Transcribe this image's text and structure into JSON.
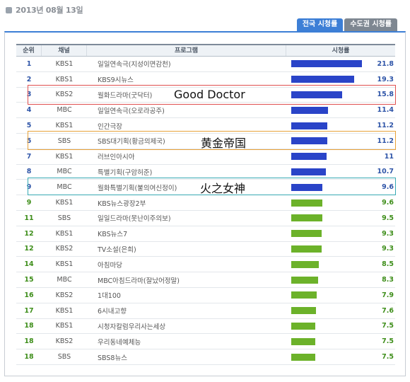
{
  "date": "2013년 08월 13일",
  "tabs": [
    {
      "label": "전국 시청률",
      "active": true
    },
    {
      "label": "수도권 시청률",
      "active": false
    }
  ],
  "table": {
    "headers": {
      "rank": "순위",
      "channel": "채널",
      "program": "프로그램",
      "rating": "시청률"
    },
    "max_rating": 21.8,
    "rows": [
      {
        "rank": "1",
        "channel": "KBS1",
        "program": "일일연속극(지성이면감천)",
        "rating": "21.8",
        "value": 21.8,
        "color": "blue"
      },
      {
        "rank": "2",
        "channel": "KBS1",
        "program": "KBS9시뉴스",
        "rating": "19.3",
        "value": 19.3,
        "color": "blue"
      },
      {
        "rank": "3",
        "channel": "KBS2",
        "program": "월화드라마(굿닥터)",
        "rating": "15.8",
        "value": 15.8,
        "color": "blue"
      },
      {
        "rank": "4",
        "channel": "MBC",
        "program": "일일연속극(오로라공주)",
        "rating": "11.4",
        "value": 11.4,
        "color": "blue"
      },
      {
        "rank": "5",
        "channel": "KBS1",
        "program": "인간극장",
        "rating": "11.2",
        "value": 11.2,
        "color": "blue"
      },
      {
        "rank": "5",
        "channel": "SBS",
        "program": "SBS대기획(황금의제국)",
        "rating": "11.2",
        "value": 11.2,
        "color": "blue"
      },
      {
        "rank": "7",
        "channel": "KBS1",
        "program": "러브인아시아",
        "rating": "11",
        "value": 11,
        "color": "blue"
      },
      {
        "rank": "8",
        "channel": "MBC",
        "program": "특별기획(구암허준)",
        "rating": "10.7",
        "value": 10.7,
        "color": "blue"
      },
      {
        "rank": "9",
        "channel": "MBC",
        "program": "월화특별기획(불의여신정이)",
        "rating": "9.6",
        "value": 9.6,
        "color": "blue"
      },
      {
        "rank": "9",
        "channel": "KBS1",
        "program": "KBS뉴스광장2부",
        "rating": "9.6",
        "value": 9.6,
        "color": "green"
      },
      {
        "rank": "11",
        "channel": "SBS",
        "program": "일일드라마(못난이주의보)",
        "rating": "9.5",
        "value": 9.5,
        "color": "green"
      },
      {
        "rank": "12",
        "channel": "KBS1",
        "program": "KBS뉴스7",
        "rating": "9.3",
        "value": 9.3,
        "color": "green"
      },
      {
        "rank": "12",
        "channel": "KBS2",
        "program": "TV소설(은희)",
        "rating": "9.3",
        "value": 9.3,
        "color": "green"
      },
      {
        "rank": "14",
        "channel": "KBS1",
        "program": "아침마당",
        "rating": "8.5",
        "value": 8.5,
        "color": "green"
      },
      {
        "rank": "15",
        "channel": "MBC",
        "program": "MBC아침드라마(잘났어정말)",
        "rating": "8.3",
        "value": 8.3,
        "color": "green"
      },
      {
        "rank": "16",
        "channel": "KBS2",
        "program": "1대100",
        "rating": "7.9",
        "value": 7.9,
        "color": "green"
      },
      {
        "rank": "17",
        "channel": "KBS1",
        "program": "6시내고향",
        "rating": "7.6",
        "value": 7.6,
        "color": "green"
      },
      {
        "rank": "18",
        "channel": "KBS1",
        "program": "시청자칼럼우리사는세상",
        "rating": "7.5",
        "value": 7.5,
        "color": "green"
      },
      {
        "rank": "18",
        "channel": "KBS2",
        "program": "우리동네예체능",
        "rating": "7.5",
        "value": 7.5,
        "color": "green"
      },
      {
        "rank": "18",
        "channel": "SBS",
        "program": "SBS8뉴스",
        "rating": "7.5",
        "value": 7.5,
        "color": "green"
      }
    ]
  },
  "annotations": [
    {
      "text": "Good Doctor",
      "color": "#e05050"
    },
    {
      "text": "黄金帝国",
      "color": "#e8a23a"
    },
    {
      "text": "火之女神",
      "color": "#37a9b4"
    }
  ]
}
